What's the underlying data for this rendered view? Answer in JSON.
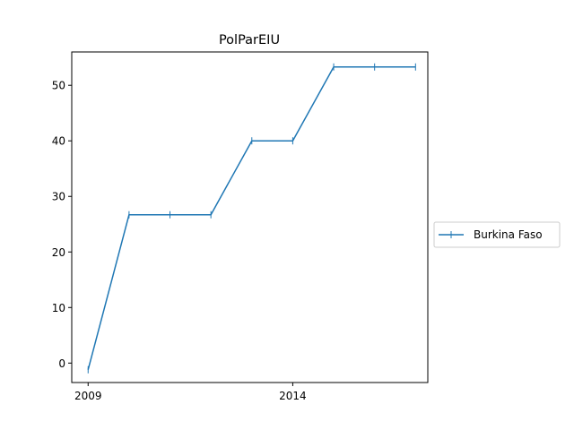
{
  "chart_data": {
    "type": "line",
    "title": "PolParEIU",
    "xlabel": "",
    "ylabel": "",
    "x": [
      2009,
      2010,
      2011,
      2012,
      2013,
      2014,
      2015,
      2016,
      2017
    ],
    "xlim": [
      2008.6,
      2017.3
    ],
    "ylim": [
      -3.5,
      56
    ],
    "x_ticks": [
      2009,
      2014
    ],
    "x_tick_labels": [
      "2009",
      "2014"
    ],
    "y_ticks": [
      0,
      10,
      20,
      30,
      40,
      50
    ],
    "y_tick_labels": [
      "0",
      "10",
      "20",
      "30",
      "40",
      "50"
    ],
    "grid": false,
    "legend_position": "center-right, outside plot",
    "series": [
      {
        "name": "Burkina Faso",
        "color": "#1f77b4",
        "marker": "vertical-tick",
        "values": [
          -1.2,
          26.7,
          26.7,
          26.7,
          40.0,
          40.0,
          53.3,
          53.3,
          53.3
        ]
      }
    ]
  }
}
